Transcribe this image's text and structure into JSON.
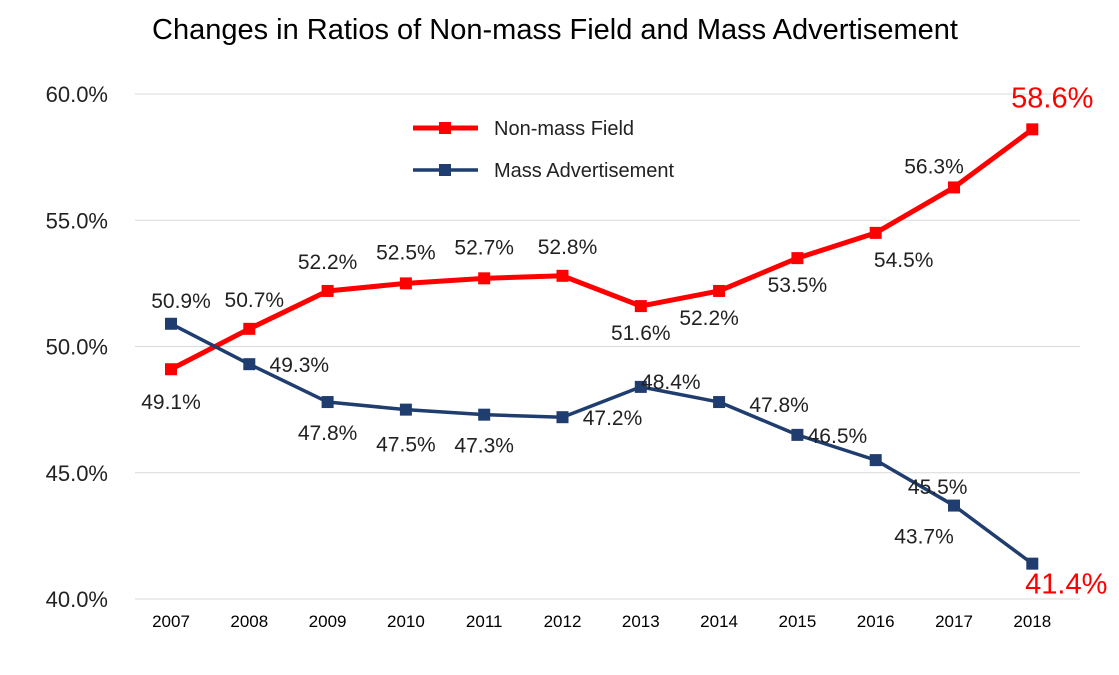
{
  "chart_data": {
    "type": "line",
    "title": "Changes in Ratios of Non-mass Field and Mass Advertisement",
    "xlabel": "",
    "ylabel": "",
    "categories": [
      "2007",
      "2008",
      "2009",
      "2010",
      "2011",
      "2012",
      "2013",
      "2014",
      "2015",
      "2016",
      "2017",
      "2018"
    ],
    "ylim": [
      40.0,
      60.0
    ],
    "yticks": [
      40.0,
      45.0,
      50.0,
      55.0,
      60.0
    ],
    "ytick_labels": [
      "40.0%",
      "45.0%",
      "50.0%",
      "55.0%",
      "60.0%"
    ],
    "grid": true,
    "legend_position": "top-center",
    "series": [
      {
        "name": "Non-mass Field",
        "color": "#ff0000",
        "marker": "square",
        "values": [
          49.1,
          50.7,
          52.2,
          52.5,
          52.7,
          52.8,
          51.6,
          52.2,
          53.5,
          54.5,
          56.3,
          58.6
        ],
        "labels": [
          "49.1%",
          "50.7%",
          "52.2%",
          "52.5%",
          "52.7%",
          "52.8%",
          "51.6%",
          "52.2%",
          "53.5%",
          "54.5%",
          "56.3%",
          "58.6%"
        ]
      },
      {
        "name": "Mass Advertisement",
        "color": "#1f3d6e",
        "marker": "square",
        "values": [
          50.9,
          49.3,
          47.8,
          47.5,
          47.3,
          47.2,
          48.4,
          47.8,
          46.5,
          45.5,
          43.7,
          41.4
        ],
        "labels": [
          "50.9%",
          "49.3%",
          "47.8%",
          "47.5%",
          "47.3%",
          "47.2%",
          "48.4%",
          "47.8%",
          "46.5%",
          "45.5%",
          "43.7%",
          "41.4%"
        ]
      }
    ],
    "highlight_color": "#ff0000"
  }
}
